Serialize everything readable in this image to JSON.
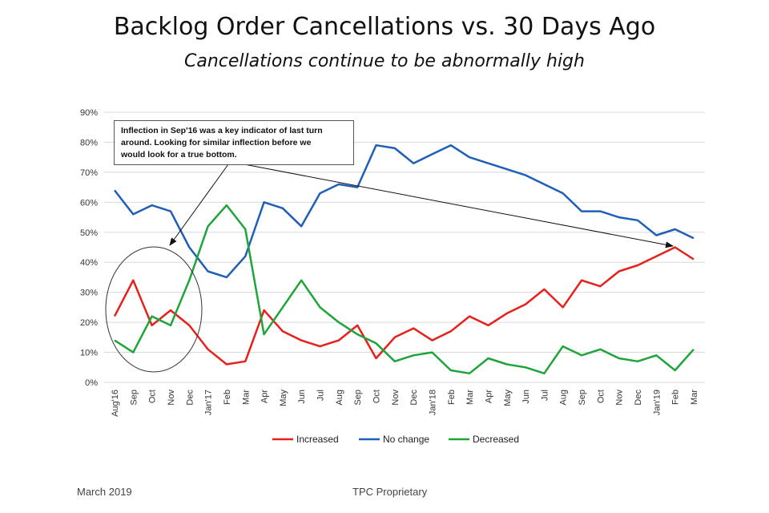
{
  "chart_data": {
    "type": "line",
    "title": "Backlog Order Cancellations vs. 30 Days Ago",
    "subtitle": "Cancellations continue to be abnormally high",
    "categories": [
      "Aug'16",
      "Sep",
      "Oct",
      "Nov",
      "Dec",
      "Jan'17",
      "Feb",
      "Mar",
      "Apr",
      "May",
      "Jun",
      "Jul",
      "Aug",
      "Sep",
      "Oct",
      "Nov",
      "Dec",
      "Jan'18",
      "Feb",
      "Mar",
      "Apr",
      "May",
      "Jun",
      "Jul",
      "Aug",
      "Sep",
      "Oct",
      "Nov",
      "Dec",
      "Jan'19",
      "Feb",
      "Mar"
    ],
    "series": [
      {
        "name": "Increased",
        "color": "#e8201c",
        "values": [
          22,
          34,
          19,
          24,
          19,
          11,
          6,
          7,
          24,
          17,
          14,
          12,
          14,
          19,
          8,
          15,
          18,
          14,
          17,
          22,
          19,
          23,
          26,
          31,
          25,
          34,
          32,
          37,
          39,
          42,
          45,
          41
        ]
      },
      {
        "name": "No change",
        "color": "#1f5fb8",
        "values": [
          64,
          56,
          59,
          57,
          45,
          37,
          35,
          42,
          60,
          58,
          52,
          63,
          66,
          65,
          79,
          78,
          73,
          76,
          79,
          75,
          73,
          71,
          69,
          66,
          63,
          57,
          57,
          55,
          54,
          49,
          51,
          48
        ]
      },
      {
        "name": "Decreased",
        "color": "#1ea53a",
        "values": [
          14,
          10,
          22,
          19,
          34,
          52,
          59,
          51,
          16,
          25,
          34,
          25,
          20,
          16,
          13,
          7,
          9,
          10,
          4,
          3,
          8,
          6,
          5,
          3,
          12,
          9,
          11,
          8,
          7,
          9,
          4,
          11
        ]
      }
    ],
    "y_ticks": [
      "0%",
      "10%",
      "20%",
      "30%",
      "40%",
      "50%",
      "60%",
      "70%",
      "80%",
      "90%"
    ],
    "ylim": [
      0,
      90
    ],
    "grid": true,
    "legend_position": "bottom",
    "annotation": {
      "lines": [
        "Inflection in Sep'16 was a key indicator of last turn",
        "around.  Looking for similar inflection before we",
        "would look for a true bottom."
      ]
    }
  },
  "footer": {
    "left": "March 2019",
    "center": "TPC Proprietary"
  }
}
